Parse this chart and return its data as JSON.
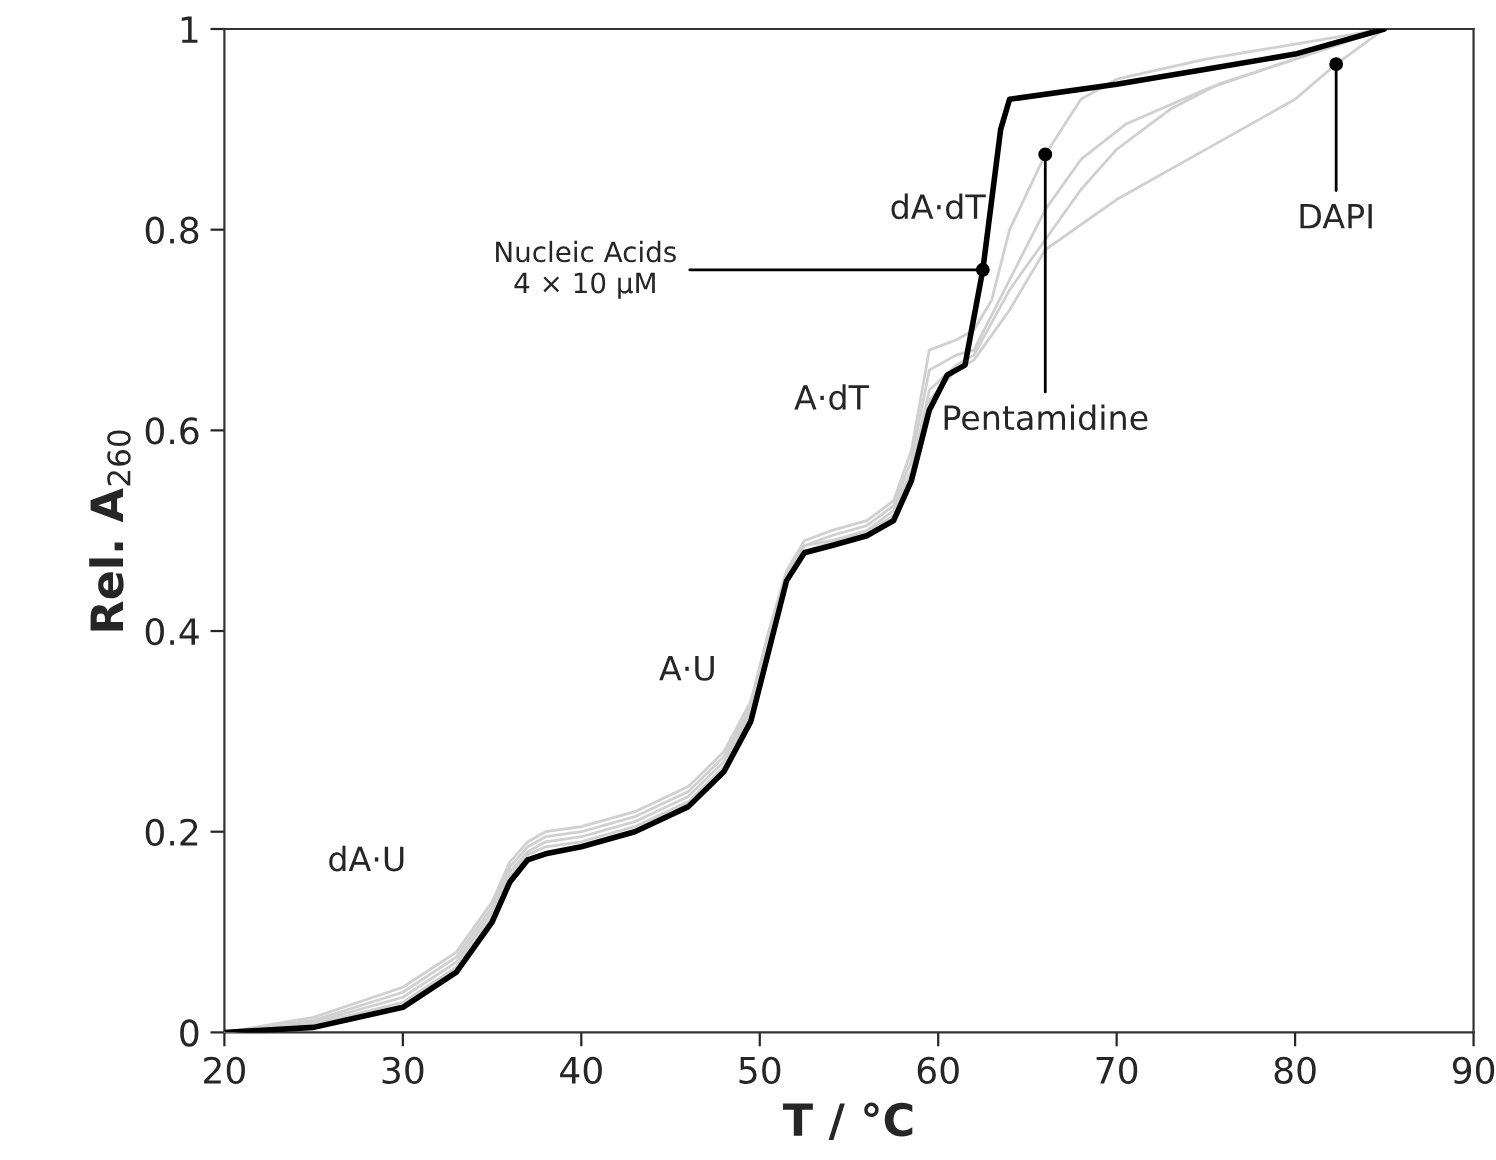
{
  "chart_data": {
    "type": "line",
    "xlabel": "T / °C",
    "ylabel": "Rel. A$_{260}$",
    "xlim": [
      20,
      90
    ],
    "ylim": [
      0,
      1
    ],
    "xticks": [
      20,
      30,
      40,
      50,
      60,
      70,
      80,
      90
    ],
    "yticks": [
      0,
      0.2,
      0.4,
      0.6,
      0.8,
      1
    ],
    "grid": false,
    "legend": false,
    "series": [
      {
        "color": "#d0d0d0",
        "x": [
          20,
          25,
          30,
          33,
          35,
          36,
          37,
          38,
          40,
          43,
          46,
          48,
          49.5,
          50.5,
          51.5,
          52.5,
          54,
          56,
          57.5,
          58.5,
          59.5,
          61,
          62,
          63,
          64,
          66,
          68,
          70,
          75,
          80,
          85
        ],
        "values": [
          0,
          0.015,
          0.045,
          0.08,
          0.13,
          0.17,
          0.19,
          0.2,
          0.205,
          0.22,
          0.245,
          0.28,
          0.33,
          0.4,
          0.46,
          0.49,
          0.5,
          0.51,
          0.53,
          0.58,
          0.68,
          0.69,
          0.7,
          0.73,
          0.8,
          0.875,
          0.93,
          0.95,
          0.97,
          0.985,
          1
        ]
      },
      {
        "color": "#d0d0d0",
        "x": [
          20,
          25,
          30,
          33,
          35,
          36,
          37,
          38,
          40,
          43,
          46,
          48,
          49.5,
          50.5,
          51.5,
          52.5,
          54,
          56,
          57.5,
          58.5,
          59.5,
          61,
          62,
          64,
          66,
          68,
          70.5,
          75,
          80,
          85
        ],
        "values": [
          0,
          0.012,
          0.04,
          0.075,
          0.125,
          0.165,
          0.185,
          0.195,
          0.2,
          0.215,
          0.24,
          0.275,
          0.325,
          0.395,
          0.455,
          0.485,
          0.495,
          0.505,
          0.525,
          0.57,
          0.66,
          0.675,
          0.68,
          0.75,
          0.82,
          0.87,
          0.905,
          0.94,
          0.97,
          1
        ]
      },
      {
        "color": "#d0d0d0",
        "x": [
          20,
          25,
          30,
          33,
          35,
          36,
          37,
          38,
          40,
          43,
          46,
          48,
          49.5,
          50.5,
          51.5,
          52.5,
          54,
          56,
          57.5,
          58.5,
          59.5,
          61,
          62,
          64,
          66,
          68,
          70,
          73,
          75.7,
          80,
          85
        ],
        "values": [
          0,
          0.01,
          0.035,
          0.07,
          0.12,
          0.16,
          0.18,
          0.19,
          0.195,
          0.21,
          0.235,
          0.27,
          0.32,
          0.39,
          0.455,
          0.485,
          0.49,
          0.5,
          0.52,
          0.56,
          0.64,
          0.665,
          0.675,
          0.74,
          0.79,
          0.84,
          0.88,
          0.92,
          0.945,
          0.97,
          1
        ]
      },
      {
        "color": "#d0d0d0",
        "x": [
          20,
          25,
          30,
          33,
          35,
          36,
          37,
          38,
          40,
          43,
          46,
          48,
          49.5,
          50.5,
          51.5,
          52.5,
          54,
          56,
          57.5,
          58.5,
          59.5,
          61,
          62,
          64,
          66,
          70,
          75,
          80,
          82.3,
          85
        ],
        "values": [
          0,
          0.008,
          0.03,
          0.065,
          0.115,
          0.155,
          0.177,
          0.185,
          0.19,
          0.205,
          0.23,
          0.265,
          0.315,
          0.385,
          0.45,
          0.48,
          0.488,
          0.498,
          0.515,
          0.555,
          0.63,
          0.66,
          0.67,
          0.72,
          0.78,
          0.83,
          0.88,
          0.93,
          0.965,
          1
        ]
      },
      {
        "color": "#000000",
        "x": [
          20,
          25,
          30,
          33,
          35,
          36,
          37,
          38,
          40,
          43,
          46,
          48,
          49.5,
          50.5,
          51.5,
          52.5,
          54,
          56,
          57.5,
          58.5,
          59.5,
          60.5,
          61.5,
          62.5,
          63.5,
          64,
          70,
          75,
          80,
          85
        ],
        "values": [
          0,
          0.005,
          0.025,
          0.06,
          0.11,
          0.15,
          0.172,
          0.178,
          0.185,
          0.2,
          0.225,
          0.26,
          0.31,
          0.38,
          0.45,
          0.478,
          0.485,
          0.495,
          0.51,
          0.55,
          0.62,
          0.655,
          0.665,
          0.76,
          0.9,
          0.93,
          0.945,
          0.96,
          0.975,
          1
        ]
      }
    ],
    "annotations": [
      "dA·U",
      "A·U",
      "A·dT",
      "dA·dT",
      {
        "text": "Nucleic Acids\n4 × 10 μM",
        "x": 62.5,
        "y": 0.76
      },
      {
        "text": "Pentamidine",
        "x": 66,
        "y": 0.875
      },
      {
        "text": "DAPI",
        "x": 82.3,
        "y": 0.965
      }
    ]
  }
}
